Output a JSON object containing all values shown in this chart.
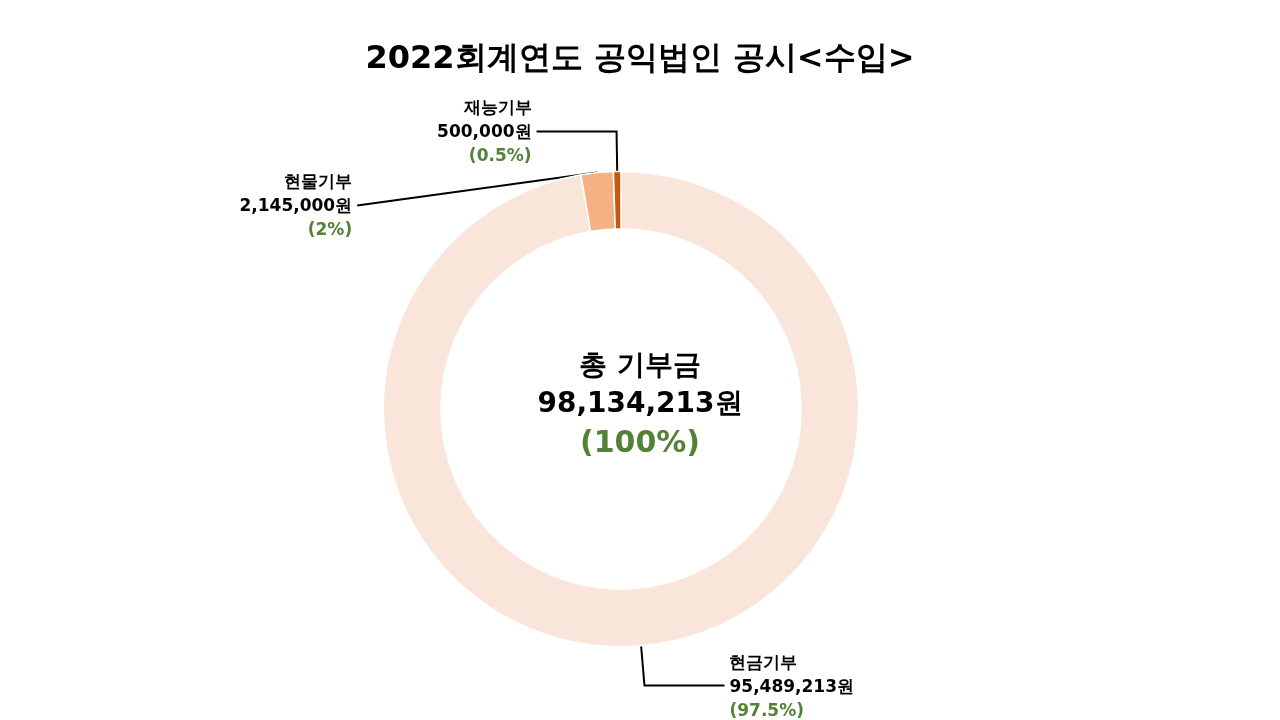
{
  "chart_data": {
    "type": "donut",
    "title": "2022회계연도 공익법인 공시<수입>",
    "categories": [
      "현금기부",
      "현물기부",
      "재능기부"
    ],
    "values": [
      95489213,
      2145000,
      500000
    ],
    "colors": [
      "#f9e5d9",
      "#f4b183",
      "#c55a11"
    ],
    "value_labels": [
      "95,489,213원\n(97.5%)",
      "2,145,000원\n(2%)",
      "500,000원\n(0.5%)"
    ],
    "annotations": [
      "총 기부금",
      "98,134,213원",
      "(100%)"
    ],
    "legend": false
  }
}
